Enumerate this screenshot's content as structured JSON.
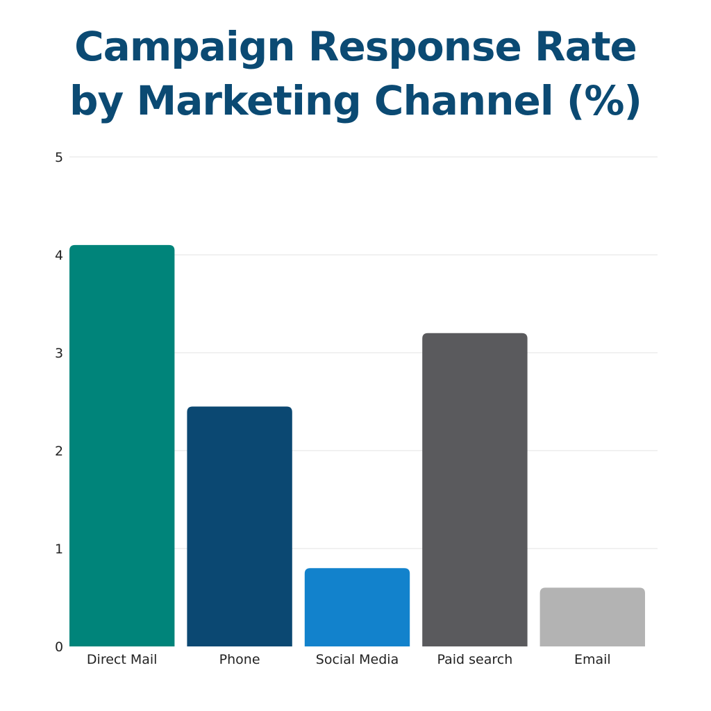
{
  "chart_data": {
    "type": "bar",
    "title_lines": [
      "Campaign Response Rate",
      "by Marketing Channel (%)"
    ],
    "xlabel": "",
    "ylabel": "",
    "categories": [
      "Direct Mail",
      "Phone",
      "Social Media",
      "Paid search",
      "Email"
    ],
    "values": [
      4.1,
      2.45,
      0.8,
      3.2,
      0.6
    ],
    "colors": [
      "#00847a",
      "#0b4872",
      "#1282cc",
      "#5a5a5d",
      "#b3b3b3"
    ],
    "ylim": [
      0,
      5
    ],
    "yticks": [
      0,
      1,
      2,
      3,
      4,
      5
    ],
    "grid": true,
    "legend": "none"
  }
}
